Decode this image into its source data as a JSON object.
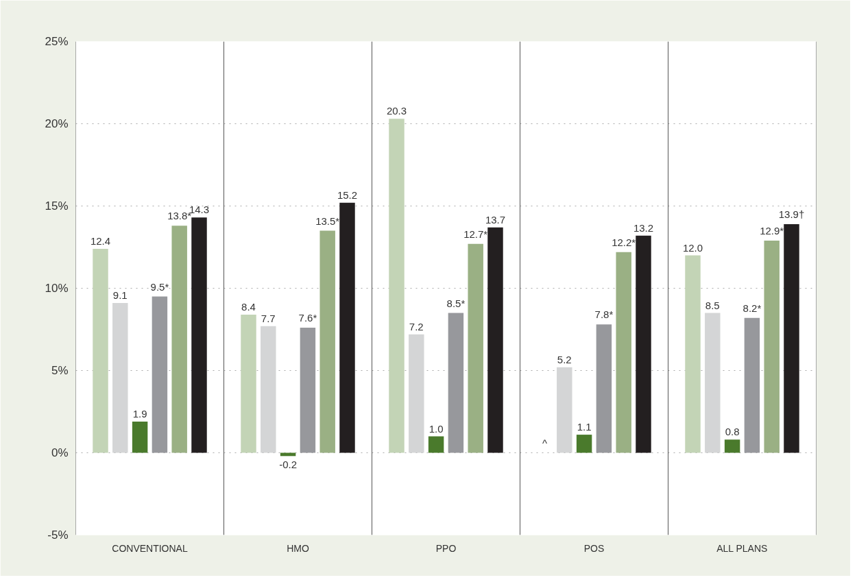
{
  "chart_data": {
    "type": "bar",
    "categories": [
      "CONVENTIONAL",
      "HMO",
      "PPO",
      "POS",
      "ALL PLANS"
    ],
    "series": [
      {
        "color": "#c3d4b6",
        "values": [
          12.4,
          8.4,
          20.3,
          null,
          12.0
        ],
        "value_labels": [
          "12.4",
          "8.4",
          "20.3",
          "^",
          "12.0"
        ]
      },
      {
        "color": "#d4d5d6",
        "values": [
          9.1,
          7.7,
          7.2,
          5.2,
          8.5
        ],
        "value_labels": [
          "9.1",
          "7.7",
          "7.2",
          "5.2",
          "8.5"
        ]
      },
      {
        "color": "#4a7a2c",
        "values": [
          1.9,
          -0.2,
          1.0,
          1.1,
          0.8
        ],
        "value_labels": [
          "1.9",
          "-0.2",
          "1.0",
          "1.1",
          "0.8"
        ]
      },
      {
        "color": "#97989c",
        "values": [
          9.5,
          7.6,
          8.5,
          7.8,
          8.2
        ],
        "value_labels": [
          "9.5*",
          "7.6*",
          "8.5*",
          "7.8*",
          "8.2*"
        ]
      },
      {
        "color": "#9ab084",
        "values": [
          13.8,
          13.5,
          12.7,
          12.2,
          12.9
        ],
        "value_labels": [
          "13.8*",
          "13.5*",
          "12.7*",
          "12.2*",
          "12.9*"
        ]
      },
      {
        "color": "#231f20",
        "values": [
          14.3,
          15.2,
          13.7,
          13.2,
          13.9
        ],
        "value_labels": [
          "14.3",
          "15.2",
          "13.7",
          "13.2",
          "13.9†"
        ]
      }
    ],
    "ylim": [
      -5,
      25
    ],
    "yticks": [
      {
        "value": -5,
        "label": "-5%"
      },
      {
        "value": 0,
        "label": "0%"
      },
      {
        "value": 5,
        "label": "5%"
      },
      {
        "value": 10,
        "label": "10%"
      },
      {
        "value": 15,
        "label": "15%"
      },
      {
        "value": 20,
        "label": "20%"
      },
      {
        "value": 25,
        "label": "25%"
      }
    ],
    "grid": "y"
  }
}
